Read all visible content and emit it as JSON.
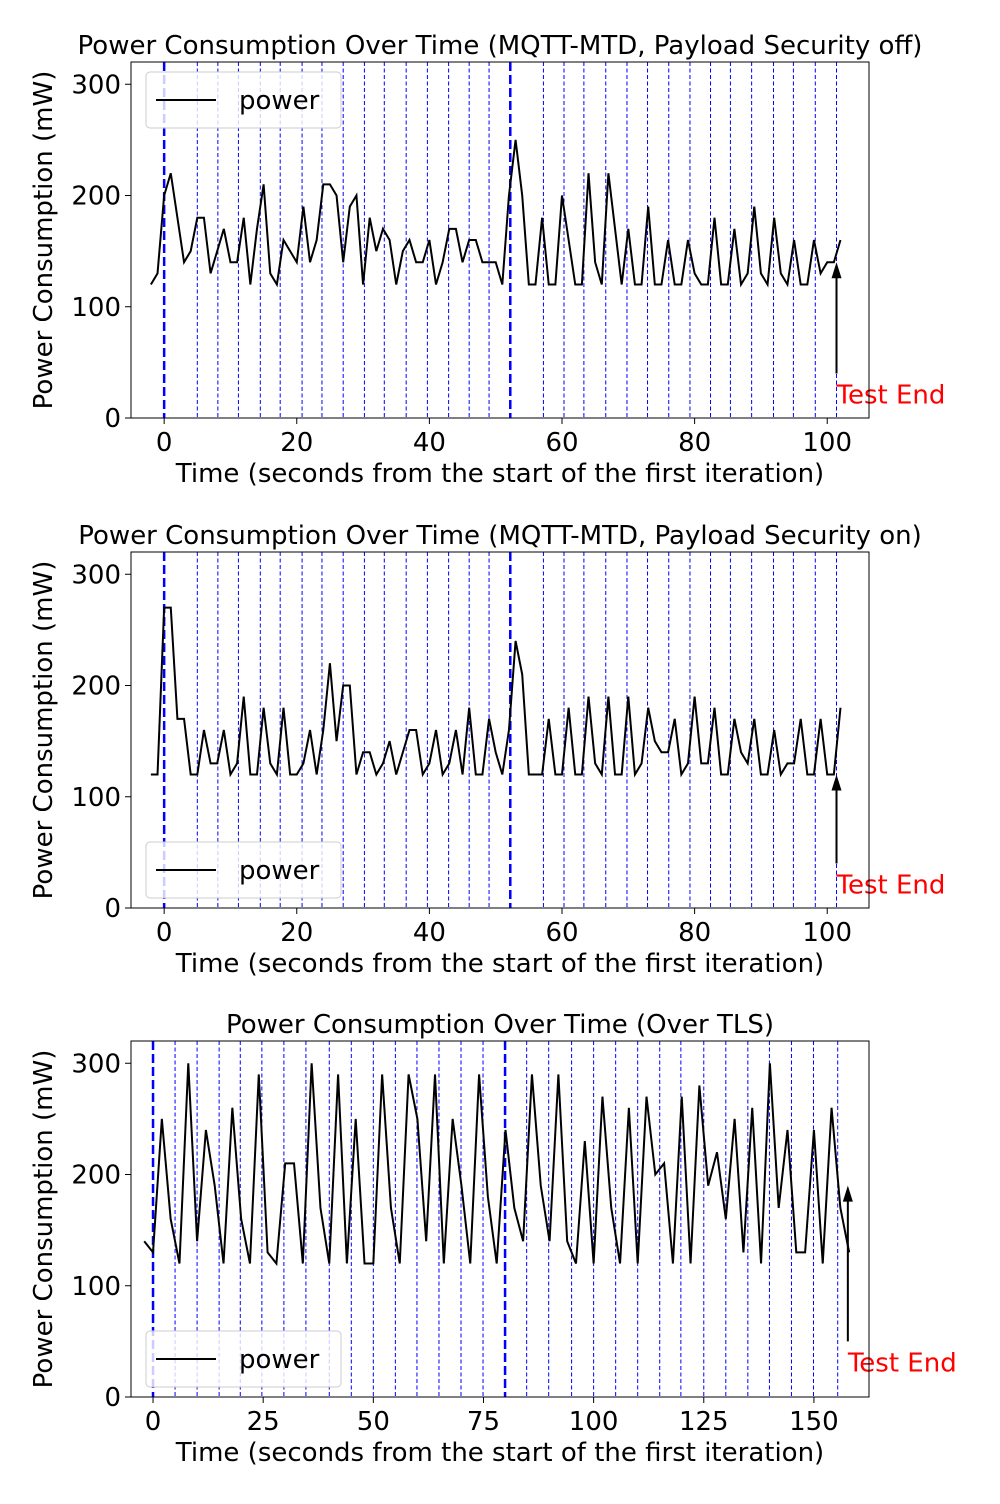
{
  "chart_data": [
    {
      "type": "line",
      "title": "Power Consumption Over Time (MQTT-MTD, Payload Security off)",
      "xlabel": "Time (seconds from the start of the first iteration)",
      "ylabel": "Power Consumption (mW)",
      "x": [
        -2,
        -1,
        0,
        1,
        2,
        3,
        4,
        5,
        6,
        7,
        8,
        9,
        10,
        11,
        12,
        13,
        14,
        15,
        16,
        17,
        18,
        19,
        20,
        21,
        22,
        23,
        24,
        25,
        26,
        27,
        28,
        29,
        30,
        31,
        32,
        33,
        34,
        35,
        36,
        37,
        38,
        39,
        40,
        41,
        42,
        43,
        44,
        45,
        46,
        47,
        48,
        49,
        50,
        51,
        52,
        53,
        54,
        55,
        56,
        57,
        58,
        59,
        60,
        61,
        62,
        63,
        64,
        65,
        66,
        67,
        68,
        69,
        70,
        71,
        72,
        73,
        74,
        75,
        76,
        77,
        78,
        79,
        80,
        81,
        82,
        83,
        84,
        85,
        86,
        87,
        88,
        89,
        90,
        91,
        92,
        93,
        94,
        95,
        96,
        97,
        98,
        99,
        100,
        101,
        102
      ],
      "series": [
        {
          "name": "power",
          "color": "#000000",
          "values": [
            120,
            130,
            200,
            220,
            180,
            140,
            150,
            180,
            180,
            130,
            150,
            170,
            140,
            140,
            180,
            120,
            170,
            210,
            130,
            120,
            160,
            150,
            140,
            190,
            140,
            160,
            210,
            210,
            200,
            140,
            190,
            200,
            120,
            180,
            150,
            170,
            160,
            120,
            150,
            160,
            140,
            140,
            160,
            120,
            140,
            170,
            170,
            140,
            160,
            160,
            140,
            140,
            140,
            120,
            200,
            250,
            200,
            120,
            120,
            180,
            120,
            120,
            200,
            160,
            120,
            120,
            220,
            140,
            120,
            220,
            170,
            120,
            170,
            120,
            120,
            190,
            120,
            120,
            160,
            120,
            120,
            160,
            130,
            120,
            120,
            180,
            120,
            120,
            170,
            120,
            130,
            190,
            130,
            120,
            180,
            130,
            120,
            160,
            120,
            120,
            160,
            130,
            140,
            140,
            160
          ]
        }
      ],
      "xlim": [
        -5,
        106.3
      ],
      "ylim": [
        0,
        320
      ],
      "xticks": [
        0,
        20,
        40,
        60,
        80,
        100
      ],
      "yticks": [
        0,
        100,
        200,
        300
      ],
      "vlines": [
        5.0,
        8.1,
        11.2,
        14.5,
        17.5,
        20.8,
        23.8,
        27.0,
        30.2,
        33.2,
        36.5,
        39.7,
        42.9,
        46.0,
        49.0,
        57.2,
        60.3,
        63.3,
        66.6,
        69.8,
        72.9,
        76.1,
        79.3,
        82.4,
        85.4,
        88.6,
        91.9,
        94.9,
        98.2,
        101.4
      ],
      "major_vlines": [
        0,
        52.2
      ],
      "vline_color": "#0000ff",
      "annotation": {
        "text": "Test End",
        "x": 101.4,
        "y": 140,
        "text_y": 40,
        "color": "#ff0000"
      },
      "legend": "upper left"
    },
    {
      "type": "line",
      "title": "Power Consumption Over Time (MQTT-MTD, Payload Security on)",
      "xlabel": "Time (seconds from the start of the first iteration)",
      "ylabel": "Power Consumption (mW)",
      "x": [
        -2,
        -1,
        0,
        1,
        2,
        3,
        4,
        5,
        6,
        7,
        8,
        9,
        10,
        11,
        12,
        13,
        14,
        15,
        16,
        17,
        18,
        19,
        20,
        21,
        22,
        23,
        24,
        25,
        26,
        27,
        28,
        29,
        30,
        31,
        32,
        33,
        34,
        35,
        36,
        37,
        38,
        39,
        40,
        41,
        42,
        43,
        44,
        45,
        46,
        47,
        48,
        49,
        50,
        51,
        52,
        53,
        54,
        55,
        56,
        57,
        58,
        59,
        60,
        61,
        62,
        63,
        64,
        65,
        66,
        67,
        68,
        69,
        70,
        71,
        72,
        73,
        74,
        75,
        76,
        77,
        78,
        79,
        80,
        81,
        82,
        83,
        84,
        85,
        86,
        87,
        88,
        89,
        90,
        91,
        92,
        93,
        94,
        95,
        96,
        97,
        98,
        99,
        100,
        101,
        102
      ],
      "series": [
        {
          "name": "power",
          "color": "#000000",
          "values": [
            120,
            120,
            270,
            270,
            170,
            170,
            120,
            120,
            160,
            130,
            130,
            160,
            120,
            130,
            190,
            120,
            120,
            180,
            130,
            120,
            180,
            120,
            120,
            130,
            160,
            120,
            160,
            220,
            150,
            200,
            200,
            120,
            140,
            140,
            120,
            130,
            150,
            120,
            140,
            160,
            160,
            120,
            130,
            160,
            120,
            130,
            160,
            120,
            180,
            120,
            120,
            170,
            140,
            120,
            160,
            240,
            210,
            120,
            120,
            120,
            170,
            120,
            120,
            180,
            120,
            120,
            190,
            130,
            120,
            190,
            120,
            120,
            190,
            120,
            130,
            180,
            150,
            140,
            140,
            170,
            120,
            130,
            190,
            130,
            130,
            180,
            120,
            120,
            170,
            140,
            130,
            170,
            120,
            120,
            160,
            120,
            130,
            130,
            170,
            120,
            120,
            170,
            120,
            120,
            180
          ]
        }
      ],
      "xlim": [
        -5,
        106.3
      ],
      "ylim": [
        0,
        320
      ],
      "xticks": [
        0,
        20,
        40,
        60,
        80,
        100
      ],
      "yticks": [
        0,
        100,
        200,
        300
      ],
      "vlines": [
        5.0,
        8.1,
        11.2,
        14.5,
        17.5,
        20.8,
        23.8,
        27.0,
        30.2,
        33.2,
        36.5,
        39.7,
        42.9,
        46.0,
        49.0,
        57.2,
        60.3,
        63.3,
        66.6,
        69.8,
        72.9,
        76.1,
        79.3,
        82.4,
        85.4,
        88.6,
        91.9,
        94.9,
        98.2,
        101.4
      ],
      "major_vlines": [
        0,
        52.2
      ],
      "vline_color": "#0000ff",
      "annotation": {
        "text": "Test End",
        "x": 101.4,
        "y": 120,
        "text_y": 40,
        "color": "#ff0000"
      },
      "legend": "lower left"
    },
    {
      "type": "line",
      "title": "Power Consumption Over Time (Over TLS)",
      "xlabel": "Time (seconds from the start of the first iteration)",
      "ylabel": "Power Consumption (mW)",
      "x": [
        -2,
        0,
        2,
        4,
        6,
        8,
        10,
        12,
        14,
        16,
        18,
        20,
        22,
        24,
        26,
        28,
        30,
        32,
        34,
        36,
        38,
        40,
        42,
        44,
        46,
        48,
        50,
        52,
        54,
        56,
        58,
        60,
        62,
        64,
        66,
        68,
        70,
        72,
        74,
        76,
        78,
        80,
        82,
        84,
        86,
        88,
        90,
        92,
        94,
        96,
        98,
        100,
        102,
        104,
        106,
        108,
        110,
        112,
        114,
        116,
        118,
        120,
        122,
        124,
        126,
        128,
        130,
        132,
        134,
        136,
        138,
        140,
        142,
        144,
        146,
        148,
        150,
        152,
        154,
        156,
        158
      ],
      "series": [
        {
          "name": "power",
          "color": "#000000",
          "values": [
            140,
            130,
            250,
            160,
            120,
            300,
            140,
            240,
            190,
            120,
            260,
            160,
            120,
            290,
            130,
            120,
            210,
            210,
            120,
            300,
            170,
            120,
            290,
            120,
            250,
            120,
            120,
            290,
            170,
            120,
            290,
            250,
            140,
            290,
            120,
            250,
            190,
            120,
            290,
            180,
            120,
            240,
            170,
            140,
            290,
            190,
            140,
            290,
            140,
            120,
            230,
            120,
            270,
            170,
            120,
            260,
            120,
            270,
            200,
            210,
            120,
            270,
            120,
            280,
            190,
            220,
            160,
            250,
            130,
            260,
            120,
            300,
            170,
            240,
            130,
            130,
            240,
            120,
            260,
            170,
            130
          ]
        }
      ],
      "xlim": [
        -5,
        162.5
      ],
      "ylim": [
        0,
        320
      ],
      "xticks": [
        0,
        25,
        50,
        75,
        100,
        125,
        150
      ],
      "yticks": [
        0,
        100,
        200,
        300
      ],
      "vlines": [
        5,
        10,
        15,
        19.8,
        24.7,
        29.7,
        34.7,
        40,
        45,
        50,
        55,
        59.9,
        64.9,
        69.9,
        74.9,
        84.8,
        89.8,
        95,
        100,
        105,
        110,
        115,
        119.8,
        125,
        130,
        135,
        139.9,
        144.9,
        149.9,
        155.4
      ],
      "major_vlines": [
        0,
        79.9
      ],
      "vline_color": "#0000ff",
      "annotation": {
        "text": "Test End",
        "x": 157.7,
        "y": 190,
        "text_y": 50,
        "color": "#ff0000"
      },
      "legend": "lower left"
    }
  ]
}
